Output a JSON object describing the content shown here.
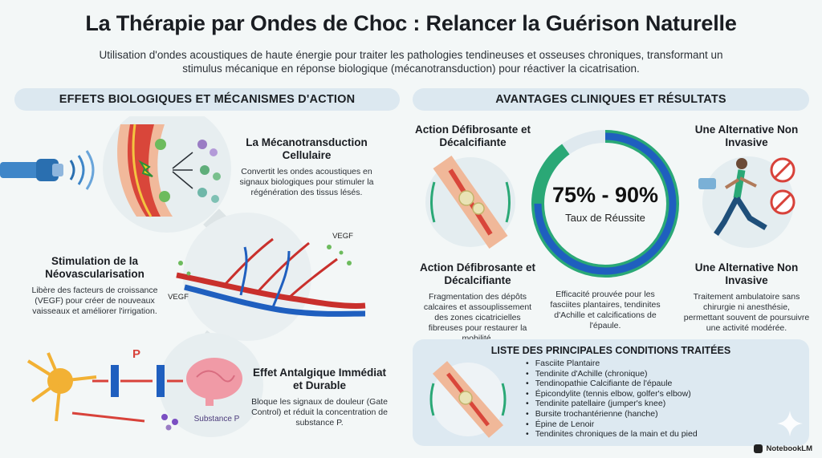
{
  "header": {
    "title": "La Thérapie par Ondes de Choc : Relancer la Guérison Naturelle",
    "subtitle": "Utilisation d'ondes acoustiques de haute énergie pour traiter les pathologies tendineuses et osseuses chroniques, transformant un stimulus mécanique en réponse biologique (mécanotransduction) pour réactiver la cicatrisation."
  },
  "left": {
    "section_title": "EFFETS BIOLOGIQUES ET MÉCANISMES D'ACTION",
    "mechano": {
      "title": "La Mécanotransduction Cellulaire",
      "text": "Convertit les ondes acoustiques en signaux biologiques pour stimuler la régénération des tissus lésés."
    },
    "neo": {
      "title": "Stimulation de la Néovascularisation",
      "text": "Libère des facteurs de croissance (VEGF) pour créer de nouveaux vaisseaux et améliorer l'irrigation.",
      "label_vegf_1": "VEGF",
      "label_vegf_2": "VEGF"
    },
    "pain": {
      "title": "Effet Antalgique Immédiat et Durable",
      "text": "Bloque les signaux de douleur (Gate Control) et réduit la concentration de substance P.",
      "label_p": "P",
      "label_substance": "Substance P"
    }
  },
  "right": {
    "section_title": "AVANTAGES CLINIQUES ET RÉSULTATS",
    "top_left_title": "Action Défibrosante et Décalcifiante",
    "top_right_title": "Une Alternative Non Invasive",
    "success": {
      "value": "75% - 90%",
      "label": "Taux de Réussite",
      "text": "Efficacité prouvée pour les fasciites plantaires, tendinites d'Achille et calcifications de l'épaule.",
      "fill_min_percent": 75,
      "fill_max_percent": 90
    },
    "defib": {
      "title": "Action Défibrosante et Décalcifiante",
      "text": "Fragmentation des dépôts calcaires et assouplissement des zones cicatricielles fibreuses pour restaurer la mobilité."
    },
    "noninv": {
      "title": "Une Alternative Non Invasive",
      "text": "Traitement ambulatoire sans chirurgie ni anesthésie, permettant souvent de poursuivre une activité modérée."
    },
    "conditions": {
      "title": "LISTE DES PRINCIPALES CONDITIONS TRAITÉES",
      "items": [
        "Fasciite Plantaire",
        "Tendinite d'Achille (chronique)",
        "Tendinopathie Calcifiante de l'épaule",
        "Épicondylite (tennis elbow, golfer's elbow)",
        "Tendinite patellaire (jumper's knee)",
        "Bursite trochantérienne (hanche)",
        "Épine de Lenoir",
        "Tendinites chroniques de la main et du pied"
      ]
    }
  },
  "footer": {
    "brand": "NotebookLM"
  },
  "colors": {
    "blue": "#1f5fbf",
    "green": "#2aa876",
    "red": "#d8423a"
  }
}
